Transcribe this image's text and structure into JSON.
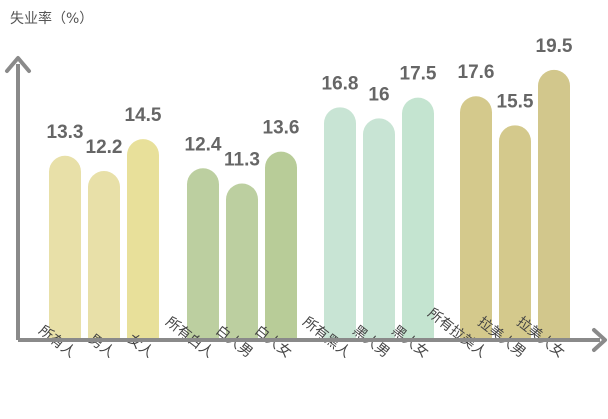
{
  "chart_data": {
    "type": "bar",
    "ylabel": "失业率（%）",
    "ylim": [
      0,
      24
    ],
    "grid": false,
    "legend": "none",
    "categories": [
      "所有人",
      "男人",
      "女人",
      "所有白人",
      "白人男",
      "白人女",
      "所有黑人",
      "黑人男",
      "黑人女",
      "所有拉美人",
      "拉美人男",
      "拉美人女"
    ],
    "values": [
      13.3,
      12.2,
      14.5,
      12.4,
      11.3,
      13.6,
      16.8,
      16,
      17.5,
      17.6,
      15.5,
      19.5
    ],
    "value_labels": [
      "13.3",
      "12.2",
      "14.5",
      "12.4",
      "11.3",
      "13.6",
      "16.8",
      "16",
      "17.5",
      "17.6",
      "15.5",
      "19.5"
    ],
    "colors": [
      "#e8e0a8",
      "#e8e0a8",
      "#e8e09a",
      "#bccfa0",
      "#bccfa0",
      "#b8cc98",
      "#c8e4d4",
      "#c8e4d4",
      "#c4e4d0",
      "#d4c98c",
      "#d4c98c",
      "#d2c78c"
    ],
    "axis_color": "#8a8a8a"
  }
}
